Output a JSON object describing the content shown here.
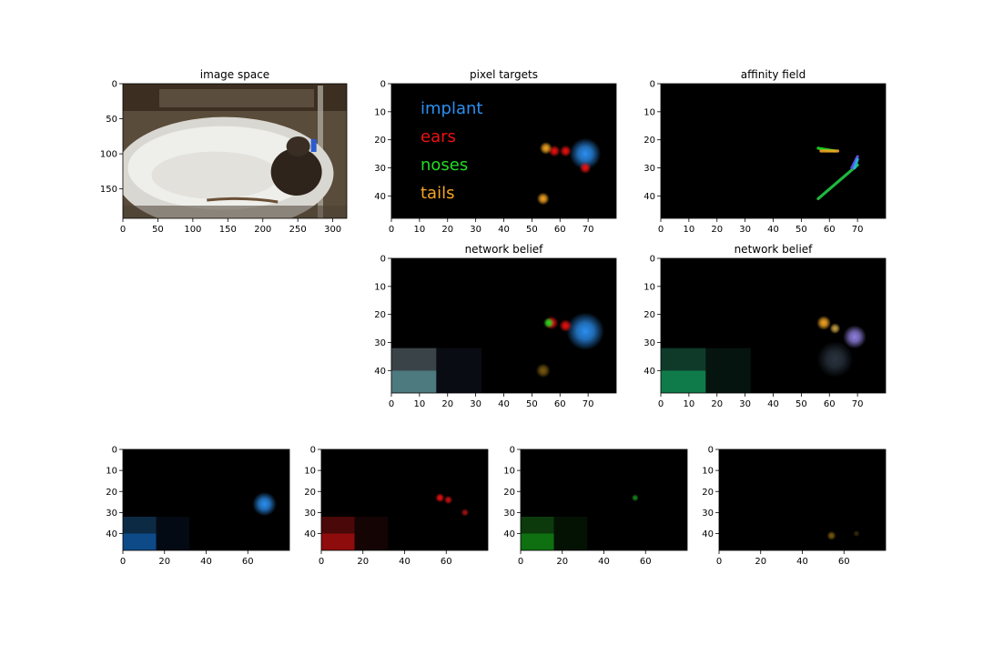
{
  "figure": {
    "background": "#ffffff",
    "legend": [
      {
        "label": "implant",
        "color": "#2b8ff0"
      },
      {
        "label": "ears",
        "color": "#ee1111"
      },
      {
        "label": "noses",
        "color": "#22dd22"
      },
      {
        "label": "tails",
        "color": "#f5a623"
      }
    ]
  },
  "chart_data": [
    {
      "id": "image-space",
      "type": "heatmap",
      "title": "image space",
      "xlim": [
        0,
        320
      ],
      "ylim": [
        192,
        0
      ],
      "xticks": [
        0,
        50,
        100,
        150,
        200,
        250,
        300
      ],
      "yticks": [
        0,
        50,
        100,
        150
      ],
      "content": "camera frame of mouse in circular white arena",
      "blobs": []
    },
    {
      "id": "pixel-targets",
      "type": "heatmap",
      "title": "pixel targets",
      "xlim": [
        0,
        80
      ],
      "ylim": [
        48,
        0
      ],
      "xticks": [
        0,
        10,
        20,
        30,
        40,
        50,
        60,
        70
      ],
      "yticks": [
        0,
        10,
        20,
        30,
        40
      ],
      "blobs": [
        {
          "x": 69,
          "y": 25,
          "r": 3.5,
          "color": "#2b8ff0"
        },
        {
          "x": 58,
          "y": 24,
          "r": 1.3,
          "color": "#ee1111"
        },
        {
          "x": 62,
          "y": 24,
          "r": 1.3,
          "color": "#ee1111"
        },
        {
          "x": 69,
          "y": 30,
          "r": 1.3,
          "color": "#ee1111"
        },
        {
          "x": 55,
          "y": 23,
          "r": 1.4,
          "color": "#f5a623"
        },
        {
          "x": 54,
          "y": 41,
          "r": 1.4,
          "color": "#f5a623"
        }
      ]
    },
    {
      "id": "affinity-field",
      "type": "heatmap",
      "title": "affinity field",
      "xlim": [
        0,
        80
      ],
      "ylim": [
        48,
        0
      ],
      "xticks": [
        0,
        10,
        20,
        30,
        40,
        50,
        60,
        70
      ],
      "yticks": [
        0,
        10,
        20,
        30,
        40
      ],
      "segments": [
        {
          "x1": 56,
          "y1": 23,
          "x2": 62,
          "y2": 24,
          "color": "#22dd22"
        },
        {
          "x1": 57,
          "y1": 24,
          "x2": 63,
          "y2": 24,
          "color": "#f5a623"
        },
        {
          "x1": 56,
          "y1": 41,
          "x2": 70,
          "y2": 29,
          "color": "#22cc44"
        },
        {
          "x1": 68,
          "y1": 30,
          "x2": 70,
          "y2": 26,
          "color": "#6655ff"
        },
        {
          "x1": 69,
          "y1": 30,
          "x2": 70,
          "y2": 27,
          "color": "#22bbdd"
        }
      ]
    },
    {
      "id": "network-belief-1",
      "type": "heatmap",
      "title": "network belief",
      "xlim": [
        0,
        80
      ],
      "ylim": [
        48,
        0
      ],
      "xticks": [
        0,
        10,
        20,
        30,
        40,
        50,
        60,
        70
      ],
      "yticks": [
        0,
        10,
        20,
        30,
        40
      ],
      "blocks": [
        {
          "x": 0,
          "y": 32,
          "w": 16,
          "h": 8,
          "color": "#3a4448"
        },
        {
          "x": 0,
          "y": 40,
          "w": 16,
          "h": 8,
          "color": "#4d7a7e"
        },
        {
          "x": 16,
          "y": 32,
          "w": 16,
          "h": 16,
          "color": "#0a0c14"
        }
      ],
      "blobs": [
        {
          "x": 69,
          "y": 26,
          "r": 4.2,
          "color": "#2b8ff0"
        },
        {
          "x": 57,
          "y": 23,
          "r": 1.5,
          "color": "#ee1111"
        },
        {
          "x": 62,
          "y": 24,
          "r": 1.4,
          "color": "#ee1111"
        },
        {
          "x": 56,
          "y": 23,
          "r": 1.2,
          "color": "#22dd22"
        },
        {
          "x": 54,
          "y": 40,
          "r": 1.6,
          "color": "#7a5a10"
        }
      ]
    },
    {
      "id": "network-belief-2",
      "type": "heatmap",
      "title": "network belief",
      "xlim": [
        0,
        80
      ],
      "ylim": [
        48,
        0
      ],
      "xticks": [
        0,
        10,
        20,
        30,
        40,
        50,
        60,
        70
      ],
      "yticks": [
        0,
        10,
        20,
        30,
        40
      ],
      "blocks": [
        {
          "x": 0,
          "y": 32,
          "w": 16,
          "h": 8,
          "color": "#0f3a2a"
        },
        {
          "x": 0,
          "y": 40,
          "w": 16,
          "h": 8,
          "color": "#0f7a4a"
        },
        {
          "x": 16,
          "y": 32,
          "w": 16,
          "h": 16,
          "color": "#061410"
        }
      ],
      "blobs": [
        {
          "x": 69,
          "y": 28,
          "r": 2.6,
          "color": "#9080e0"
        },
        {
          "x": 58,
          "y": 23,
          "r": 1.6,
          "color": "#f5a623"
        },
        {
          "x": 62,
          "y": 25,
          "r": 1.2,
          "color": "#c7a040"
        },
        {
          "x": 62,
          "y": 36,
          "r": 4.0,
          "color": "#2a3440"
        }
      ]
    },
    {
      "id": "channel-implant",
      "type": "heatmap",
      "title": "",
      "xlim": [
        0,
        80
      ],
      "ylim": [
        48,
        0
      ],
      "xticks": [
        0,
        20,
        40,
        60
      ],
      "yticks": [
        0,
        10,
        20,
        30,
        40
      ],
      "blocks": [
        {
          "x": 0,
          "y": 32,
          "w": 16,
          "h": 8,
          "color": "#0d2a44"
        },
        {
          "x": 0,
          "y": 40,
          "w": 16,
          "h": 8,
          "color": "#0e4a88"
        },
        {
          "x": 16,
          "y": 32,
          "w": 16,
          "h": 16,
          "color": "#040a14"
        }
      ],
      "blobs": [
        {
          "x": 68,
          "y": 26,
          "r": 3.6,
          "color": "#2b8ff0"
        }
      ]
    },
    {
      "id": "channel-ears",
      "type": "heatmap",
      "title": "",
      "xlim": [
        0,
        80
      ],
      "ylim": [
        48,
        0
      ],
      "xticks": [
        0,
        20,
        40,
        60
      ],
      "yticks": [
        0,
        10,
        20,
        30,
        40
      ],
      "blocks": [
        {
          "x": 0,
          "y": 32,
          "w": 16,
          "h": 8,
          "color": "#4a0808"
        },
        {
          "x": 0,
          "y": 40,
          "w": 16,
          "h": 8,
          "color": "#8e0c0c"
        },
        {
          "x": 16,
          "y": 32,
          "w": 16,
          "h": 16,
          "color": "#140404"
        }
      ],
      "blobs": [
        {
          "x": 57,
          "y": 23,
          "r": 1.4,
          "color": "#ee1111"
        },
        {
          "x": 61,
          "y": 24,
          "r": 1.3,
          "color": "#cc1111"
        },
        {
          "x": 69,
          "y": 30,
          "r": 1.2,
          "color": "#aa1111"
        }
      ]
    },
    {
      "id": "channel-noses",
      "type": "heatmap",
      "title": "",
      "xlim": [
        0,
        80
      ],
      "ylim": [
        48,
        0
      ],
      "xticks": [
        0,
        20,
        40,
        60
      ],
      "yticks": [
        0,
        10,
        20,
        30,
        40
      ],
      "blocks": [
        {
          "x": 0,
          "y": 32,
          "w": 16,
          "h": 8,
          "color": "#0c3a0c"
        },
        {
          "x": 0,
          "y": 40,
          "w": 16,
          "h": 8,
          "color": "#0e7010"
        },
        {
          "x": 16,
          "y": 32,
          "w": 16,
          "h": 16,
          "color": "#041204"
        }
      ],
      "blobs": [
        {
          "x": 55,
          "y": 23,
          "r": 1.1,
          "color": "#1a8a1a"
        }
      ]
    },
    {
      "id": "channel-tails",
      "type": "heatmap",
      "title": "",
      "xlim": [
        0,
        80
      ],
      "ylim": [
        48,
        0
      ],
      "xticks": [
        0,
        20,
        40,
        60
      ],
      "yticks": [
        0,
        10,
        20,
        30,
        40
      ],
      "blocks": [],
      "blobs": [
        {
          "x": 54,
          "y": 41,
          "r": 1.4,
          "color": "#7a5a10"
        },
        {
          "x": 66,
          "y": 40,
          "r": 1.0,
          "color": "#3a2a0a"
        }
      ]
    }
  ]
}
